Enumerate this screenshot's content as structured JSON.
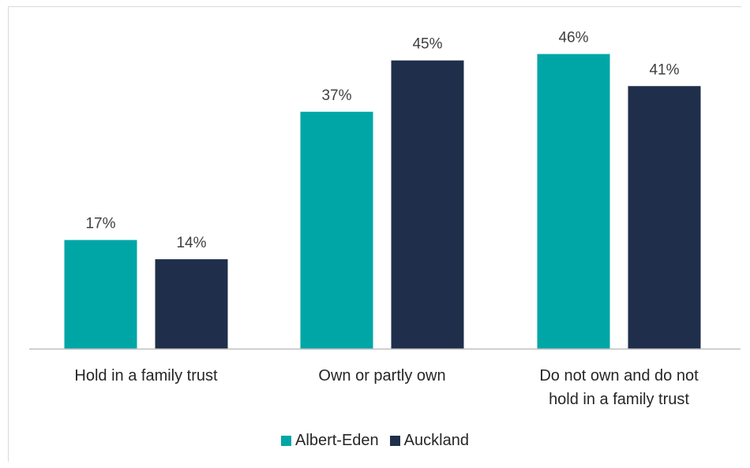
{
  "chart_data": {
    "type": "bar",
    "categories": [
      [
        "Hold in a family trust"
      ],
      [
        "Own or partly own"
      ],
      [
        "Do not own and do not",
        "hold in a family trust"
      ]
    ],
    "series": [
      {
        "name": "Albert-Eden",
        "values": [
          17,
          37,
          46
        ],
        "labels": [
          "17%",
          "37%",
          "46%"
        ],
        "color": "#00a6a6"
      },
      {
        "name": "Auckland",
        "values": [
          14,
          45,
          41
        ],
        "labels": [
          "14%",
          "45%",
          "41%"
        ],
        "color": "#1f2f4b"
      }
    ],
    "ylim": [
      0,
      50
    ],
    "grid": false,
    "legend_position": "bottom"
  }
}
